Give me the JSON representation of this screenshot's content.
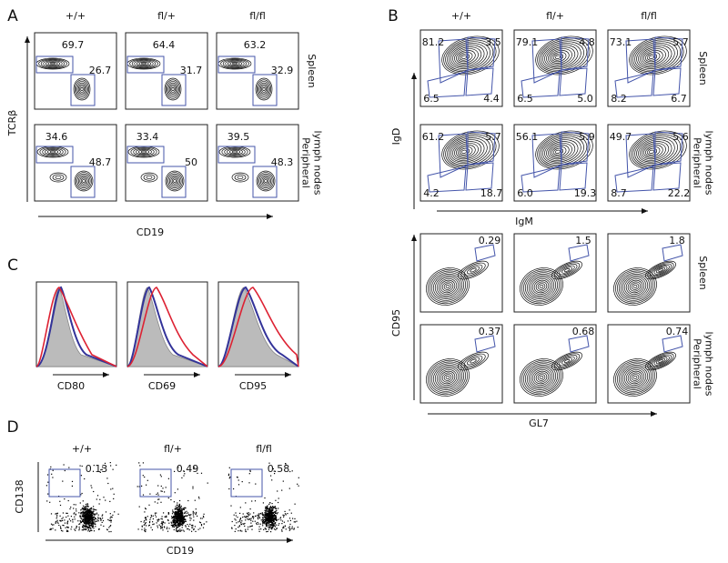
{
  "panel_a": {
    "letter": "A",
    "columns": [
      "+/+",
      "fl/+",
      "fl/fl"
    ],
    "rows": [
      [
        "Spleen"
      ],
      [
        "Peripheral",
        "lymph nodes"
      ]
    ],
    "y_label": "TCRβ",
    "x_label": "CD19",
    "gates": [
      [
        [
          "69.7",
          "26.7"
        ],
        [
          "64.4",
          "31.7"
        ],
        [
          "63.2",
          "32.9"
        ]
      ],
      [
        [
          "34.6",
          "48.7"
        ],
        [
          "33.4",
          "50"
        ],
        [
          "39.5",
          "48.3"
        ]
      ]
    ]
  },
  "panel_b": {
    "letter": "B",
    "columns": [
      "+/+",
      "fl/+",
      "fl/fl"
    ],
    "top": {
      "rows": [
        [
          "Spleen"
        ],
        [
          "Peripheral",
          "lymph nodes"
        ]
      ],
      "y_label": "IgD",
      "x_label": "IgM",
      "gates": [
        [
          [
            "81.2",
            "3.5",
            "4.4",
            "6.5"
          ],
          [
            "79.1",
            "4.8",
            "5.0",
            "6.5"
          ],
          [
            "73.1",
            "5.7",
            "6.7",
            "8.2"
          ]
        ],
        [
          [
            "61.2",
            "5.7",
            "18.7",
            "4.2"
          ],
          [
            "56.1",
            "5.9",
            "19.3",
            "6.0"
          ],
          [
            "49.7",
            "5.6",
            "22.2",
            "8.7"
          ]
        ]
      ]
    },
    "bottom": {
      "rows": [
        [
          "Spleen"
        ],
        [
          "Peripheral",
          "lymph nodes"
        ]
      ],
      "y_label": "CD95",
      "x_label": "GL7",
      "gates": [
        [
          "0.29",
          "1.5",
          "1.8"
        ],
        [
          "0.37",
          "0.68",
          "0.74"
        ]
      ]
    }
  },
  "panel_c": {
    "letter": "C",
    "markers": [
      "CD80",
      "CD69",
      "CD95"
    ]
  },
  "panel_d": {
    "letter": "D",
    "columns": [
      "+/+",
      "fl/+",
      "fl/fl"
    ],
    "y_label": "CD138",
    "x_label": "CD19",
    "gates": [
      "0.13",
      "0.49",
      "0.58"
    ]
  }
}
